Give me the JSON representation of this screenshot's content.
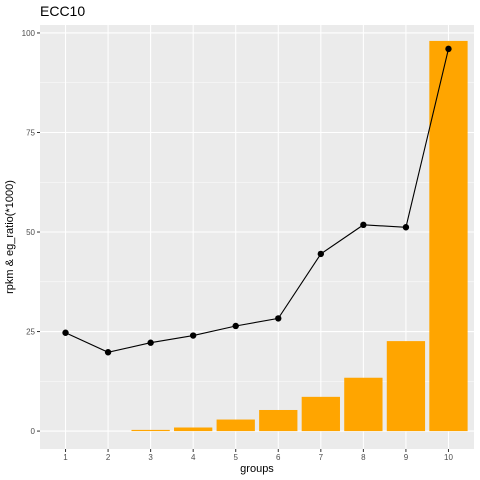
{
  "chart_data": {
    "type": "bar+line",
    "title": "ECC10",
    "xlabel": "groups",
    "ylabel": "rpkm & eg_ratio(*1000)",
    "categories": [
      "1",
      "2",
      "3",
      "4",
      "5",
      "6",
      "7",
      "8",
      "9",
      "10"
    ],
    "ylim": [
      -4.5,
      102
    ],
    "yticks": [
      0,
      25,
      50,
      75,
      100
    ],
    "grid": true,
    "colors": {
      "bar": "#FFA500",
      "line": "#000000",
      "panel": "#EBEBEB"
    },
    "series": [
      {
        "kind": "bar",
        "values": [
          0,
          0,
          0.3,
          0.9,
          2.9,
          5.3,
          8.6,
          13.4,
          22.6,
          98.0
        ]
      },
      {
        "kind": "line",
        "values": [
          24.7,
          19.8,
          22.2,
          24.0,
          26.4,
          28.3,
          44.5,
          51.8,
          51.2,
          96.0
        ]
      }
    ]
  }
}
